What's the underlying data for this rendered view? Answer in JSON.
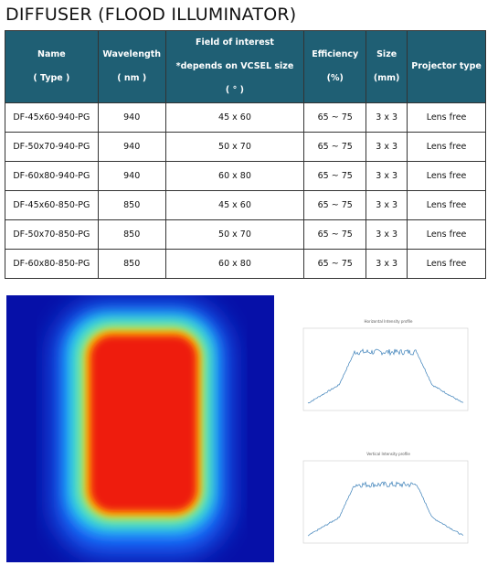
{
  "header": {
    "title": "DIFFUSER (FLOOD ILLUMINATOR)"
  },
  "table": {
    "columns": [
      [
        "Name",
        "( Type )"
      ],
      [
        "Wavelength",
        "( nm )"
      ],
      [
        "Field of interest",
        "*depends on VCSEL size",
        "( ° )"
      ],
      [
        "Efficiency",
        "(%)"
      ],
      [
        "Size",
        "(mm)"
      ],
      [
        "Projector type"
      ]
    ],
    "rows": [
      [
        "DF-45x60-940-PG",
        "940",
        "45 x 60",
        "65 ~ 75",
        "3 x 3",
        "Lens free"
      ],
      [
        "DF-50x70-940-PG",
        "940",
        "50 x 70",
        "65 ~ 75",
        "3 x 3",
        "Lens free"
      ],
      [
        "DF-60x80-940-PG",
        "940",
        "60 x 80",
        "65 ~ 75",
        "3 x 3",
        "Lens free"
      ],
      [
        "DF-45x60-850-PG",
        "850",
        "45 x 60",
        "65 ~ 75",
        "3 x 3",
        "Lens free"
      ],
      [
        "DF-50x70-850-PG",
        "850",
        "50 x 70",
        "65 ~ 75",
        "3 x 3",
        "Lens free"
      ],
      [
        "DF-60x80-850-PG",
        "850",
        "60 x 80",
        "65 ~ 75",
        "3 x 3",
        "Lens free"
      ]
    ]
  },
  "plots": [
    {
      "title": "Horizontal Intensity profile"
    },
    {
      "title": "Vertical Intensity profile"
    }
  ]
}
